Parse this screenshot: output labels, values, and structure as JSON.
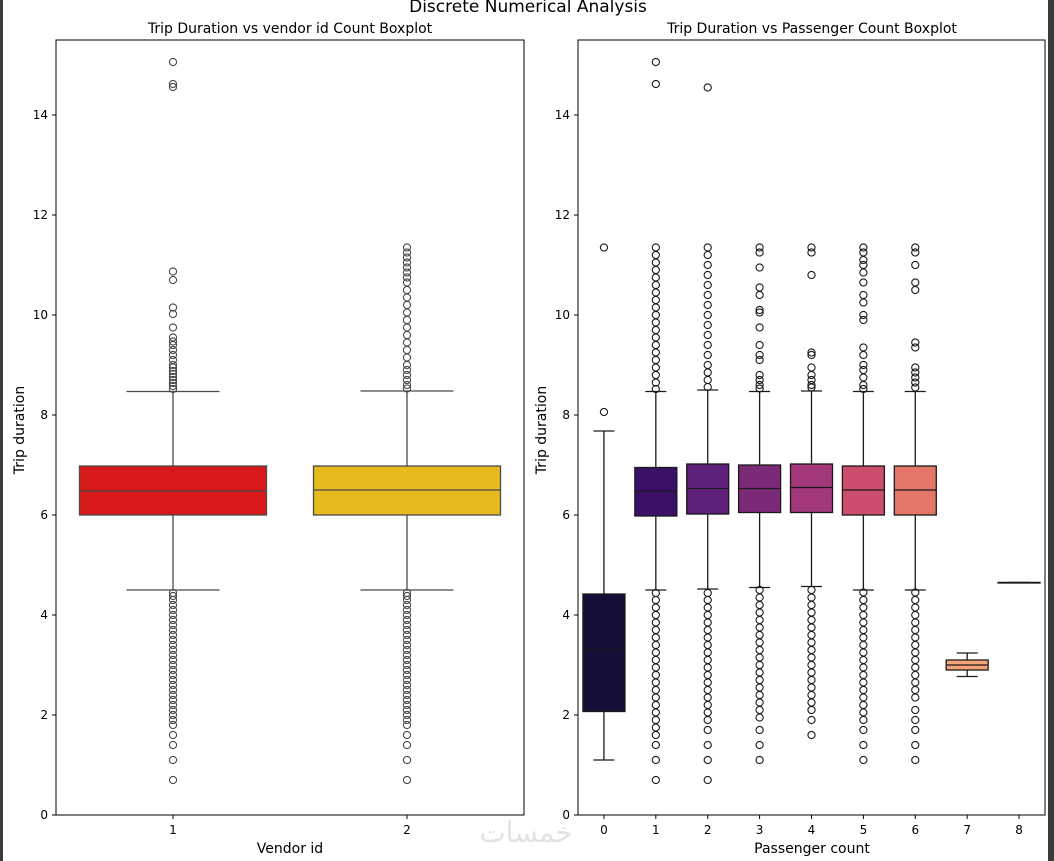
{
  "figure": {
    "suptitle": "Discrete Numerical Analysis",
    "watermark": "خمسات"
  },
  "chart_data": [
    {
      "type": "boxplot",
      "title": "Trip Duration vs vendor id Count Boxplot",
      "xlabel": "Vendor id",
      "ylabel": "Trip duration",
      "ylim": [
        0,
        15.5
      ],
      "yticks": [
        0,
        2,
        4,
        6,
        8,
        10,
        12,
        14
      ],
      "categories": [
        "1",
        "2"
      ],
      "boxes": [
        {
          "category": "1",
          "color": "#d71919",
          "whisker_low": 4.5,
          "q1": 6.0,
          "median": 6.48,
          "q3": 6.98,
          "whisker_high": 8.47,
          "outliers": [
            15.06,
            14.62,
            14.56,
            10.87,
            10.7,
            10.15,
            10.02,
            9.75,
            9.55,
            9.47,
            9.4,
            9.3,
            9.2,
            9.1,
            9.0,
            8.95,
            8.88,
            8.82,
            8.76,
            8.7,
            8.64,
            8.58,
            8.52,
            4.44,
            4.38,
            4.3,
            4.2,
            4.1,
            4.0,
            3.9,
            3.8,
            3.7,
            3.6,
            3.5,
            3.4,
            3.3,
            3.2,
            3.1,
            3.0,
            2.9,
            2.8,
            2.7,
            2.6,
            2.5,
            2.4,
            2.3,
            2.2,
            2.1,
            2.0,
            1.9,
            1.8,
            1.6,
            1.4,
            1.1,
            0.7
          ]
        },
        {
          "category": "2",
          "color": "#e6b91e",
          "whisker_low": 4.5,
          "q1": 6.0,
          "median": 6.5,
          "q3": 6.98,
          "whisker_high": 8.48,
          "outliers": [
            11.35,
            11.25,
            11.15,
            11.05,
            10.95,
            10.85,
            10.75,
            10.65,
            10.5,
            10.35,
            10.2,
            10.05,
            9.9,
            9.75,
            9.6,
            9.45,
            9.3,
            9.15,
            9.0,
            8.9,
            8.8,
            8.7,
            8.6,
            8.53,
            4.44,
            4.38,
            4.3,
            4.2,
            4.1,
            4.0,
            3.9,
            3.8,
            3.7,
            3.6,
            3.5,
            3.4,
            3.3,
            3.2,
            3.1,
            3.0,
            2.9,
            2.8,
            2.7,
            2.6,
            2.5,
            2.4,
            2.3,
            2.2,
            2.1,
            2.0,
            1.9,
            1.8,
            1.6,
            1.4,
            1.1,
            0.7
          ]
        }
      ]
    },
    {
      "type": "boxplot",
      "title": "Trip Duration vs Passenger Count Boxplot",
      "xlabel": "Passenger count",
      "ylabel": "Trip duration",
      "ylim": [
        0,
        15.5
      ],
      "yticks": [
        0,
        2,
        4,
        6,
        8,
        10,
        12,
        14
      ],
      "categories": [
        "0",
        "1",
        "2",
        "3",
        "4",
        "5",
        "6",
        "7",
        "8"
      ],
      "boxes": [
        {
          "category": "0",
          "color": "#140f39",
          "whisker_low": 1.1,
          "q1": 2.07,
          "median": 3.3,
          "q3": 4.42,
          "whisker_high": 7.68,
          "outliers": [
            11.35,
            8.06
          ]
        },
        {
          "category": "1",
          "color": "#3a1068",
          "whisker_low": 4.5,
          "q1": 5.98,
          "median": 6.48,
          "q3": 6.95,
          "whisker_high": 8.47,
          "outliers": [
            15.06,
            14.62,
            11.35,
            11.2,
            11.05,
            10.9,
            10.75,
            10.6,
            10.45,
            10.3,
            10.15,
            10.0,
            9.85,
            9.7,
            9.55,
            9.4,
            9.25,
            9.1,
            8.95,
            8.8,
            8.65,
            8.52,
            4.44,
            4.3,
            4.15,
            4.0,
            3.85,
            3.7,
            3.55,
            3.4,
            3.25,
            3.1,
            2.95,
            2.8,
            2.65,
            2.5,
            2.35,
            2.2,
            2.05,
            1.9,
            1.75,
            1.6,
            1.4,
            1.1,
            0.7
          ]
        },
        {
          "category": "2",
          "color": "#5e1f7b",
          "whisker_low": 4.52,
          "q1": 6.02,
          "median": 6.53,
          "q3": 7.02,
          "whisker_high": 8.5,
          "outliers": [
            14.55,
            11.35,
            11.2,
            11.0,
            10.8,
            10.6,
            10.4,
            10.2,
            10.0,
            9.8,
            9.6,
            9.4,
            9.2,
            9.0,
            8.85,
            8.7,
            8.56,
            4.44,
            4.3,
            4.15,
            4.0,
            3.85,
            3.7,
            3.55,
            3.4,
            3.25,
            3.1,
            2.95,
            2.8,
            2.65,
            2.5,
            2.35,
            2.2,
            2.05,
            1.9,
            1.7,
            1.4,
            1.1,
            0.7
          ]
        },
        {
          "category": "3",
          "color": "#7b2a78",
          "whisker_low": 4.55,
          "q1": 6.05,
          "median": 6.53,
          "q3": 7.0,
          "whisker_high": 8.47,
          "outliers": [
            11.35,
            11.25,
            10.95,
            10.55,
            10.4,
            10.1,
            10.05,
            9.75,
            9.4,
            9.2,
            9.1,
            8.8,
            8.7,
            8.6,
            8.53,
            4.5,
            4.35,
            4.2,
            4.05,
            3.9,
            3.75,
            3.6,
            3.45,
            3.3,
            3.15,
            3.0,
            2.85,
            2.7,
            2.55,
            2.4,
            2.25,
            2.1,
            1.95,
            1.7,
            1.4,
            1.1
          ]
        },
        {
          "category": "4",
          "color": "#a3397a",
          "whisker_low": 4.57,
          "q1": 6.05,
          "median": 6.55,
          "q3": 7.02,
          "whisker_high": 8.48,
          "outliers": [
            11.35,
            11.25,
            10.8,
            9.25,
            9.2,
            8.95,
            8.8,
            8.7,
            8.6,
            8.55,
            4.5,
            4.35,
            4.2,
            4.05,
            3.9,
            3.75,
            3.6,
            3.45,
            3.3,
            3.15,
            3.0,
            2.85,
            2.7,
            2.55,
            2.4,
            2.25,
            2.1,
            1.9,
            1.6
          ]
        },
        {
          "category": "5",
          "color": "#cc4d6e",
          "whisker_low": 4.5,
          "q1": 6.0,
          "median": 6.5,
          "q3": 6.98,
          "whisker_high": 8.47,
          "outliers": [
            11.35,
            11.25,
            11.1,
            11.0,
            10.85,
            10.65,
            10.4,
            10.25,
            10.0,
            9.9,
            9.35,
            9.2,
            9.0,
            8.9,
            8.75,
            8.6,
            8.52,
            4.45,
            4.3,
            4.15,
            4.0,
            3.85,
            3.7,
            3.55,
            3.4,
            3.25,
            3.1,
            2.95,
            2.8,
            2.65,
            2.5,
            2.35,
            2.2,
            2.05,
            1.9,
            1.7,
            1.4,
            1.1
          ]
        },
        {
          "category": "6",
          "color": "#e47667",
          "whisker_low": 4.5,
          "q1": 6.0,
          "median": 6.5,
          "q3": 6.98,
          "whisker_high": 8.47,
          "outliers": [
            11.35,
            11.25,
            11.0,
            10.65,
            10.5,
            9.45,
            9.35,
            8.95,
            8.85,
            8.75,
            8.65,
            8.55,
            4.45,
            4.3,
            4.15,
            4.0,
            3.85,
            3.7,
            3.55,
            3.4,
            3.25,
            3.1,
            2.95,
            2.8,
            2.65,
            2.5,
            2.35,
            2.1,
            1.9,
            1.7,
            1.4,
            1.1
          ]
        },
        {
          "category": "7",
          "color": "#f4a27a",
          "whisker_low": 2.77,
          "q1": 2.9,
          "median": 3.0,
          "q3": 3.1,
          "whisker_high": 3.24,
          "outliers": []
        },
        {
          "category": "8",
          "color": "#f8c49a",
          "whisker_low": 4.65,
          "q1": 4.65,
          "median": 4.65,
          "q3": 4.65,
          "whisker_high": 4.65,
          "outliers": []
        }
      ]
    }
  ]
}
